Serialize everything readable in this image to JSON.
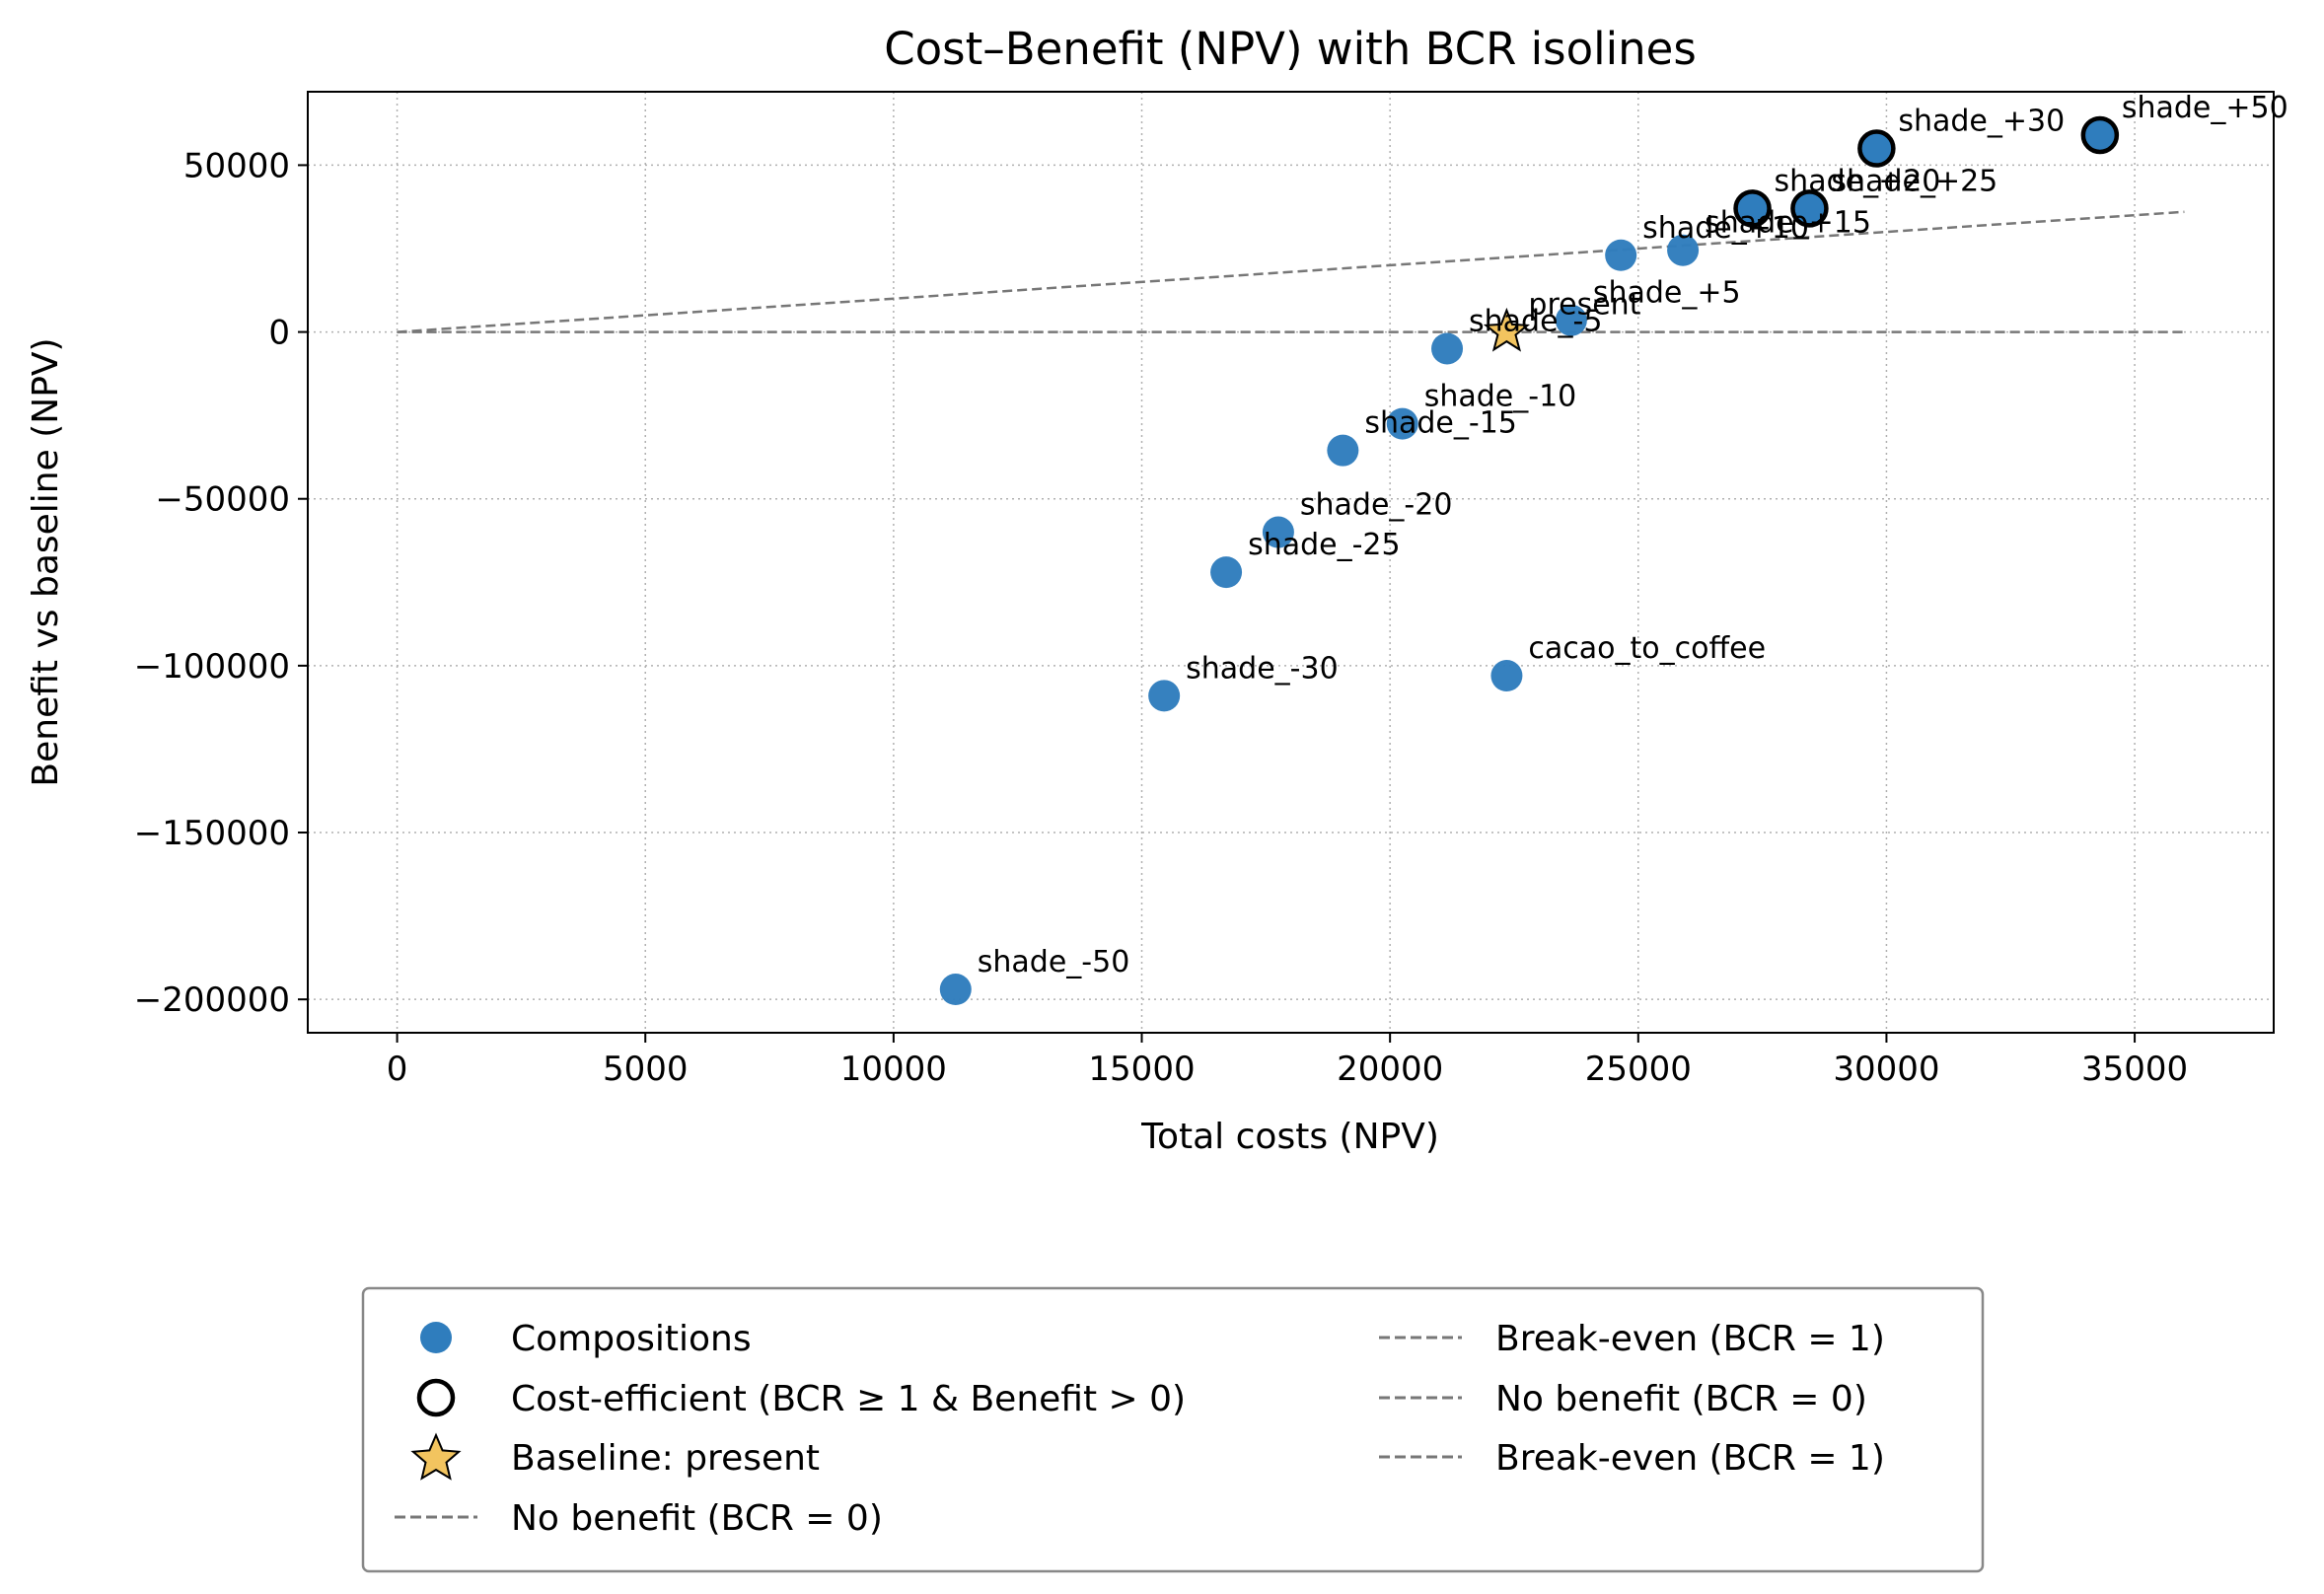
{
  "chart_data": {
    "type": "scatter",
    "title": "Cost–Benefit (NPV) with BCR isolines",
    "xlabel": "Total costs (NPV)",
    "ylabel": "Benefit vs baseline (NPV)",
    "xlim": [
      -1800,
      37800
    ],
    "ylim": [
      -210000,
      72000
    ],
    "xticks": [
      0,
      5000,
      10000,
      15000,
      20000,
      25000,
      30000,
      35000
    ],
    "yticks": [
      50000,
      0,
      -50000,
      -100000,
      -150000,
      -200000
    ],
    "ytick_labels": [
      "50000",
      "0",
      "−50000",
      "−100000",
      "−150000",
      "−200000"
    ],
    "grid": true,
    "colors": {
      "compositions": "#2f7dbd",
      "baseline_star": "#f2c45f",
      "isoline": "#777777",
      "grid": "#b0b0b0",
      "frame": "#000000"
    },
    "points": [
      {
        "label": "shade_-50",
        "x": 11250,
        "y": -197000,
        "efficient": false
      },
      {
        "label": "shade_-30",
        "x": 15450,
        "y": -109000,
        "efficient": false
      },
      {
        "label": "shade_-25",
        "x": 16700,
        "y": -72000,
        "efficient": false
      },
      {
        "label": "shade_-20",
        "x": 17750,
        "y": -60000,
        "efficient": false
      },
      {
        "label": "shade_-15",
        "x": 19050,
        "y": -35500,
        "efficient": false
      },
      {
        "label": "shade_-10",
        "x": 20250,
        "y": -27500,
        "efficient": false
      },
      {
        "label": "shade_-5",
        "x": 21150,
        "y": -5000,
        "efficient": false
      },
      {
        "label": "cacao_to_coffee",
        "x": 22350,
        "y": -103000,
        "efficient": false
      },
      {
        "label": "shade_+5",
        "x": 23650,
        "y": 3500,
        "efficient": false
      },
      {
        "label": "shade_+10",
        "x": 24650,
        "y": 23000,
        "efficient": false
      },
      {
        "label": "shade_+15",
        "x": 25900,
        "y": 24500,
        "efficient": false
      },
      {
        "label": "shade_+20",
        "x": 27300,
        "y": 37000,
        "efficient": true
      },
      {
        "label": "shade_+25",
        "x": 28450,
        "y": 37000,
        "efficient": true
      },
      {
        "label": "shade_+30",
        "x": 29800,
        "y": 55000,
        "efficient": true
      },
      {
        "label": "shade_+50",
        "x": 34300,
        "y": 59000,
        "efficient": true
      }
    ],
    "baseline": {
      "label": "present",
      "x": 22350,
      "y": 0
    },
    "isolines": [
      {
        "name": "Break-even (BCR = 1)",
        "from": [
          0,
          0
        ],
        "to": [
          36000,
          36000
        ]
      },
      {
        "name": "No benefit (BCR = 0)",
        "from": [
          0,
          0
        ],
        "to": [
          36000,
          0
        ]
      }
    ],
    "legend": {
      "placement": "below plot",
      "entries": [
        {
          "label": "Compositions",
          "marker": "dot"
        },
        {
          "label": "Cost-efficient (BCR ≥ 1 & Benefit > 0)",
          "marker": "ring"
        },
        {
          "label": "Baseline: present",
          "marker": "star"
        },
        {
          "label": "No benefit (BCR = 0)",
          "marker": "dash"
        },
        {
          "label": "Break-even (BCR = 1)",
          "marker": "dash"
        },
        {
          "label": "No benefit (BCR = 0)",
          "marker": "dash"
        },
        {
          "label": "Break-even (BCR = 1)",
          "marker": "dash"
        }
      ]
    }
  }
}
